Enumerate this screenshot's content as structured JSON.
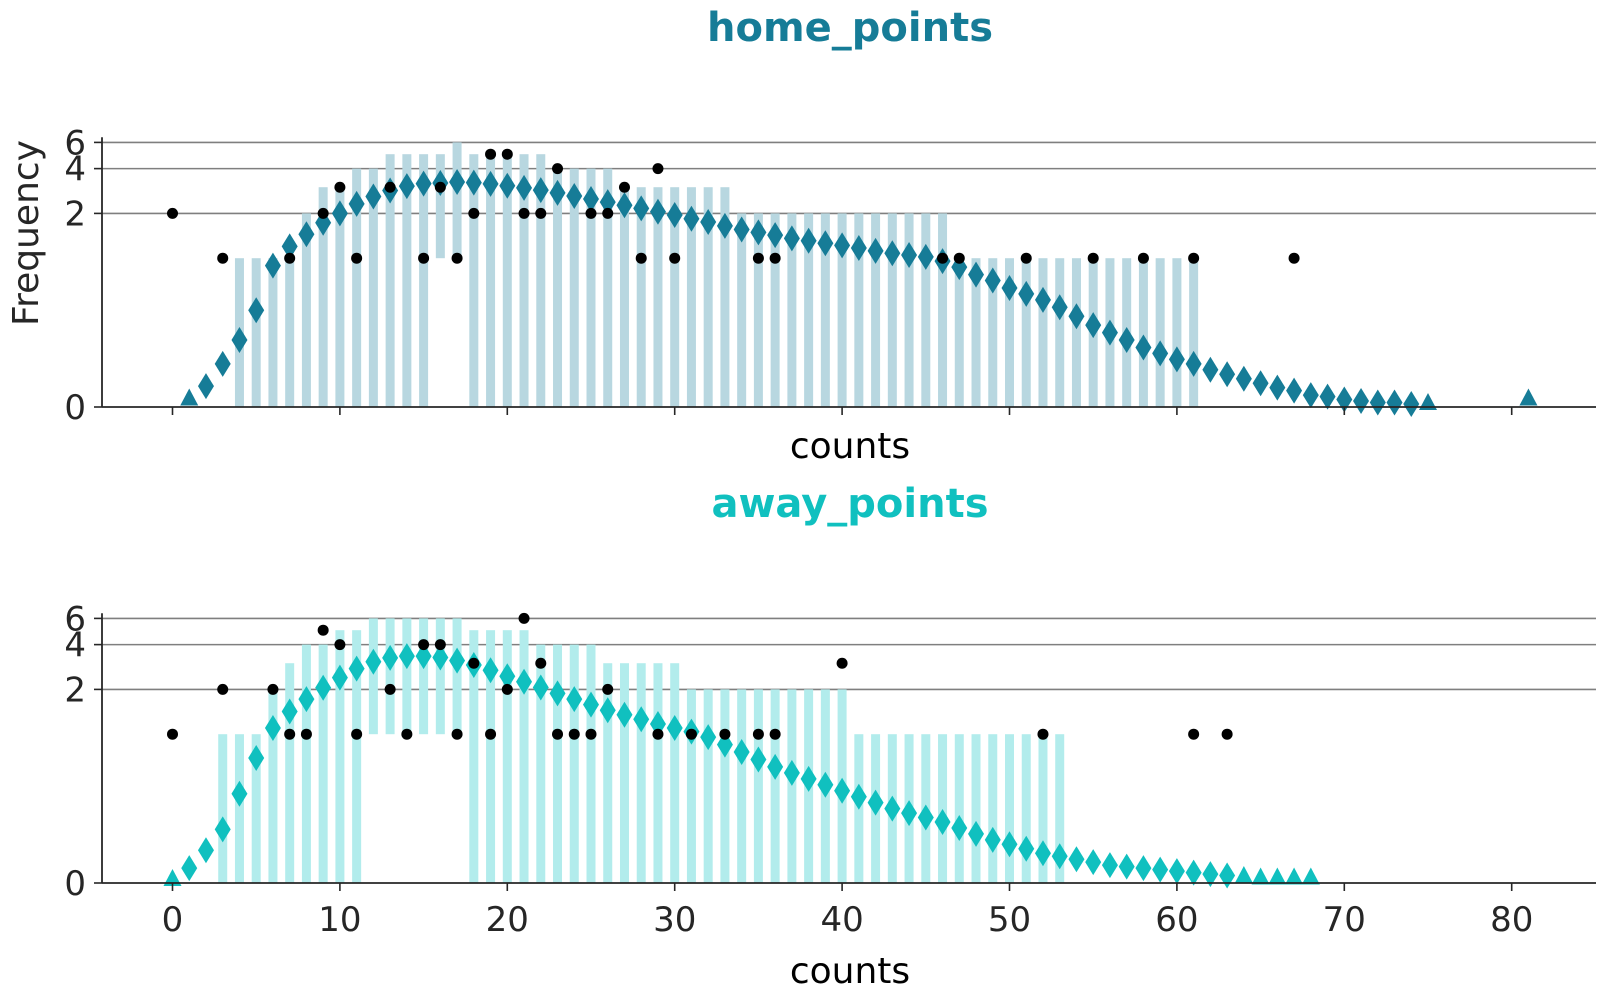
{
  "chart_data": [
    {
      "type": "bar",
      "title": "home_points",
      "xlabel": "counts",
      "ylabel": "Frequency",
      "xlim": [
        -4,
        85
      ],
      "ylim": [
        0,
        6.5
      ],
      "yscale": "symlog",
      "y_ticks": [
        0,
        2,
        4,
        6
      ],
      "x_ticks": [],
      "grid": "y",
      "colors": {
        "fit": "#167c97",
        "hist": "#b8d7e0",
        "observed": "#000000"
      },
      "smoothed": {
        "x": [
          1,
          2,
          3,
          4,
          5,
          6,
          7,
          8,
          9,
          10,
          11,
          12,
          13,
          14,
          15,
          16,
          17,
          18,
          19,
          20,
          21,
          22,
          23,
          24,
          25,
          26,
          27,
          28,
          29,
          30,
          31,
          32,
          33,
          34,
          35,
          36,
          37,
          38,
          39,
          40,
          41,
          42,
          43,
          44,
          45,
          46,
          47,
          48,
          49,
          50,
          51,
          52,
          53,
          54,
          55,
          56,
          57,
          58,
          59,
          60,
          61,
          62,
          63,
          64,
          65,
          66,
          67,
          68,
          69,
          70,
          71,
          72,
          73,
          74,
          75,
          81
        ],
        "values": [
          0.05,
          0.14,
          0.29,
          0.45,
          0.65,
          0.95,
          1.2,
          1.45,
          1.73,
          2.0,
          2.32,
          2.6,
          2.85,
          3.05,
          3.17,
          3.2,
          3.25,
          3.22,
          3.16,
          3.07,
          2.97,
          2.87,
          2.75,
          2.62,
          2.5,
          2.38,
          2.27,
          2.16,
          2.05,
          1.95,
          1.84,
          1.75,
          1.65,
          1.56,
          1.49,
          1.43,
          1.36,
          1.31,
          1.26,
          1.22,
          1.17,
          1.12,
          1.08,
          1.05,
          1.02,
          0.98,
          0.94,
          0.89,
          0.85,
          0.8,
          0.76,
          0.72,
          0.67,
          0.61,
          0.55,
          0.5,
          0.45,
          0.4,
          0.36,
          0.32,
          0.29,
          0.25,
          0.22,
          0.19,
          0.16,
          0.13,
          0.11,
          0.08,
          0.07,
          0.05,
          0.04,
          0.03,
          0.03,
          0.02,
          0.02,
          0.05
        ],
        "markers": [
          "triangle",
          "diamond",
          "diamond",
          "diamond",
          "diamond",
          "diamond",
          "diamond",
          "diamond",
          "diamond",
          "diamond",
          "diamond",
          "diamond",
          "diamond",
          "diamond",
          "diamond",
          "diamond",
          "diamond",
          "diamond",
          "diamond",
          "diamond",
          "diamond",
          "diamond",
          "diamond",
          "diamond",
          "diamond",
          "diamond",
          "diamond",
          "diamond",
          "diamond",
          "diamond",
          "diamond",
          "diamond",
          "diamond",
          "diamond",
          "diamond",
          "diamond",
          "diamond",
          "diamond",
          "diamond",
          "diamond",
          "diamond",
          "diamond",
          "diamond",
          "diamond",
          "diamond",
          "diamond",
          "diamond",
          "diamond",
          "diamond",
          "diamond",
          "diamond",
          "diamond",
          "diamond",
          "diamond",
          "diamond",
          "diamond",
          "diamond",
          "diamond",
          "diamond",
          "diamond",
          "diamond",
          "diamond",
          "diamond",
          "diamond",
          "diamond",
          "diamond",
          "diamond",
          "diamond",
          "diamond",
          "diamond",
          "diamond",
          "diamond",
          "diamond",
          "diamond",
          "triangle",
          "triangle"
        ]
      },
      "histogram": {
        "x": [
          4,
          5,
          6,
          7,
          8,
          9,
          10,
          11,
          12,
          13,
          14,
          15,
          16,
          17,
          18,
          19,
          20,
          21,
          22,
          23,
          24,
          25,
          26,
          27,
          28,
          29,
          30,
          31,
          32,
          33,
          34,
          35,
          36,
          37,
          38,
          39,
          40,
          41,
          42,
          43,
          44,
          45,
          46,
          47,
          48,
          49,
          50,
          51,
          52,
          53,
          54,
          55,
          56,
          57,
          58,
          59,
          60,
          61
        ],
        "values": [
          1,
          1,
          1,
          1,
          2,
          3,
          3,
          4,
          4,
          5,
          5,
          5,
          5,
          6,
          5,
          5,
          5,
          5,
          5,
          4,
          4,
          4,
          4,
          3,
          3,
          3,
          3,
          3,
          3,
          3,
          2,
          2,
          2,
          2,
          2,
          2,
          2,
          2,
          2,
          2,
          2,
          2,
          2,
          1,
          1,
          1,
          1,
          1,
          1,
          1,
          1,
          1,
          1,
          1,
          1,
          1,
          1,
          1
        ],
        "bottoms": [
          0,
          0,
          0,
          0,
          0,
          0,
          0,
          0,
          0,
          0,
          0,
          0,
          1,
          1,
          0,
          0,
          0,
          0,
          0,
          0,
          0,
          0,
          0,
          0,
          0,
          0,
          0,
          0,
          0,
          0,
          0,
          0,
          0,
          0,
          0,
          0,
          0,
          0,
          0,
          0,
          0,
          0,
          0,
          0,
          0,
          0,
          0,
          0,
          0,
          0,
          0,
          0,
          0,
          0,
          0,
          0,
          0,
          0
        ]
      },
      "observed": {
        "x": [
          0,
          3,
          7,
          9,
          10,
          11,
          13,
          15,
          16,
          17,
          18,
          19,
          20,
          21,
          22,
          23,
          25,
          26,
          27,
          28,
          29,
          30,
          35,
          36,
          46,
          47,
          51,
          55,
          58,
          61,
          67
        ],
        "values": [
          2,
          1,
          1,
          2,
          3,
          1,
          3,
          1,
          3,
          1,
          2,
          5,
          5,
          2,
          2,
          4,
          2,
          2,
          3,
          1,
          4,
          1,
          1,
          1,
          1,
          1,
          1,
          1,
          1,
          1,
          1
        ]
      }
    },
    {
      "type": "bar",
      "title": "away_points",
      "xlabel": "counts",
      "ylabel": "",
      "xlim": [
        -4,
        85
      ],
      "ylim": [
        0,
        6.5
      ],
      "yscale": "symlog",
      "y_ticks": [
        0,
        2,
        4,
        6
      ],
      "x_ticks": [
        0,
        10,
        20,
        30,
        40,
        50,
        60,
        70,
        80
      ],
      "grid": "y",
      "colors": {
        "fit": "#10c0bf",
        "hist": "#b2ecec",
        "observed": "#000000"
      },
      "smoothed": {
        "x": [
          0,
          1,
          2,
          3,
          4,
          5,
          6,
          7,
          8,
          9,
          10,
          11,
          12,
          13,
          14,
          15,
          16,
          17,
          18,
          19,
          20,
          21,
          22,
          23,
          24,
          25,
          26,
          27,
          28,
          29,
          30,
          31,
          32,
          33,
          34,
          35,
          36,
          37,
          38,
          39,
          40,
          41,
          42,
          43,
          44,
          45,
          46,
          47,
          48,
          49,
          50,
          51,
          52,
          53,
          54,
          55,
          56,
          57,
          58,
          59,
          60,
          61,
          62,
          63,
          64,
          65,
          66,
          67,
          68
        ],
        "values": [
          0.02,
          0.1,
          0.22,
          0.36,
          0.6,
          0.84,
          1.1,
          1.42,
          1.72,
          2.05,
          2.4,
          2.76,
          3.07,
          3.26,
          3.35,
          3.35,
          3.28,
          3.12,
          2.92,
          2.69,
          2.45,
          2.25,
          2.06,
          1.88,
          1.72,
          1.58,
          1.45,
          1.35,
          1.26,
          1.17,
          1.1,
          1.04,
          0.98,
          0.93,
          0.88,
          0.83,
          0.78,
          0.74,
          0.7,
          0.66,
          0.62,
          0.58,
          0.54,
          0.5,
          0.47,
          0.44,
          0.41,
          0.37,
          0.33,
          0.29,
          0.26,
          0.23,
          0.2,
          0.18,
          0.16,
          0.14,
          0.12,
          0.11,
          0.1,
          0.09,
          0.08,
          0.07,
          0.06,
          0.05,
          0.04,
          0.03,
          0.03,
          0.03,
          0.03
        ],
        "markers": [
          "triangle",
          "diamond",
          "diamond",
          "diamond",
          "diamond",
          "diamond",
          "diamond",
          "diamond",
          "diamond",
          "diamond",
          "diamond",
          "diamond",
          "diamond",
          "diamond",
          "diamond",
          "diamond",
          "diamond",
          "diamond",
          "diamond",
          "diamond",
          "diamond",
          "diamond",
          "diamond",
          "diamond",
          "diamond",
          "diamond",
          "diamond",
          "diamond",
          "diamond",
          "diamond",
          "diamond",
          "diamond",
          "diamond",
          "diamond",
          "diamond",
          "diamond",
          "diamond",
          "diamond",
          "diamond",
          "diamond",
          "diamond",
          "diamond",
          "diamond",
          "diamond",
          "diamond",
          "diamond",
          "diamond",
          "diamond",
          "diamond",
          "diamond",
          "diamond",
          "diamond",
          "diamond",
          "diamond",
          "diamond",
          "diamond",
          "diamond",
          "diamond",
          "diamond",
          "diamond",
          "diamond",
          "diamond",
          "diamond",
          "diamond",
          "triangle",
          "triangle",
          "triangle",
          "triangle",
          "triangle"
        ]
      },
      "histogram": {
        "x": [
          3,
          4,
          5,
          6,
          7,
          8,
          9,
          10,
          11,
          12,
          13,
          14,
          15,
          16,
          17,
          18,
          19,
          20,
          21,
          22,
          23,
          24,
          25,
          26,
          27,
          28,
          29,
          30,
          31,
          32,
          33,
          34,
          35,
          36,
          37,
          38,
          39,
          40,
          41,
          42,
          43,
          44,
          45,
          46,
          47,
          48,
          49,
          50,
          51,
          52,
          53
        ],
        "values": [
          1,
          1,
          1,
          2,
          3,
          4,
          4,
          5,
          5,
          6,
          6,
          6,
          6,
          6,
          6,
          5,
          5,
          5,
          5,
          4,
          4,
          4,
          4,
          3,
          3,
          3,
          3,
          3,
          2,
          2,
          2,
          2,
          2,
          2,
          2,
          2,
          2,
          2,
          1,
          1,
          1,
          1,
          1,
          1,
          1,
          1,
          1,
          1,
          1,
          1,
          1
        ],
        "bottoms": [
          0,
          0,
          0,
          0,
          0,
          0,
          0,
          0,
          0,
          1,
          1,
          1,
          1,
          1,
          1,
          0,
          0,
          0,
          0,
          0,
          0,
          0,
          0,
          0,
          0,
          0,
          0,
          0,
          0,
          0,
          0,
          0,
          0,
          0,
          0,
          0,
          0,
          0,
          0,
          0,
          0,
          0,
          0,
          0,
          0,
          0,
          0,
          0,
          0,
          0,
          0
        ]
      },
      "observed": {
        "x": [
          0,
          3,
          6,
          7,
          8,
          9,
          10,
          11,
          13,
          14,
          15,
          16,
          17,
          18,
          19,
          20,
          21,
          22,
          23,
          24,
          25,
          26,
          29,
          31,
          33,
          35,
          36,
          40,
          52,
          61,
          63
        ],
        "values": [
          1,
          2,
          2,
          1,
          1,
          5,
          4,
          1,
          2,
          1,
          4,
          4,
          1,
          3,
          1,
          2,
          6,
          3,
          1,
          1,
          1,
          2,
          1,
          1,
          1,
          1,
          1,
          3,
          1,
          1,
          1
        ]
      }
    }
  ]
}
